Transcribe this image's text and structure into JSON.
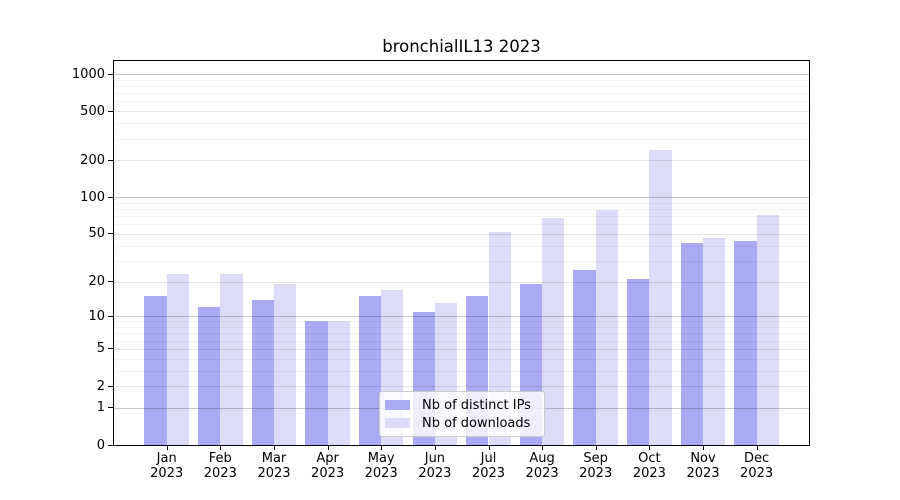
{
  "title": "bronchialIL13 2023",
  "chart_data": {
    "type": "bar",
    "title": "bronchialIL13 2023",
    "categories": [
      "Jan 2023",
      "Feb 2023",
      "Mar 2023",
      "Apr 2023",
      "May 2023",
      "Jun 2023",
      "Jul 2023",
      "Aug 2023",
      "Sep 2023",
      "Oct 2023",
      "Nov 2023",
      "Dec 2023"
    ],
    "series": [
      {
        "name": "Nb of distinct IPs",
        "color": "#a9a9f4",
        "values": [
          15,
          12,
          14,
          9,
          15,
          11,
          15,
          19,
          25,
          21,
          42,
          44
        ]
      },
      {
        "name": "Nb of downloads",
        "color": "#dcdcf8",
        "values": [
          23,
          23,
          19,
          9,
          17,
          13,
          52,
          68,
          79,
          244,
          46,
          71
        ]
      }
    ],
    "yscale": "log1p",
    "yticks": [
      0,
      1,
      2,
      5,
      10,
      20,
      50,
      100,
      200,
      500,
      1000
    ],
    "ylim": [
      0,
      1270
    ],
    "xlabel": "",
    "ylabel": "",
    "grid": true,
    "legend_position": "lower center",
    "background": "#ffffff",
    "axis_color": "#000000"
  }
}
